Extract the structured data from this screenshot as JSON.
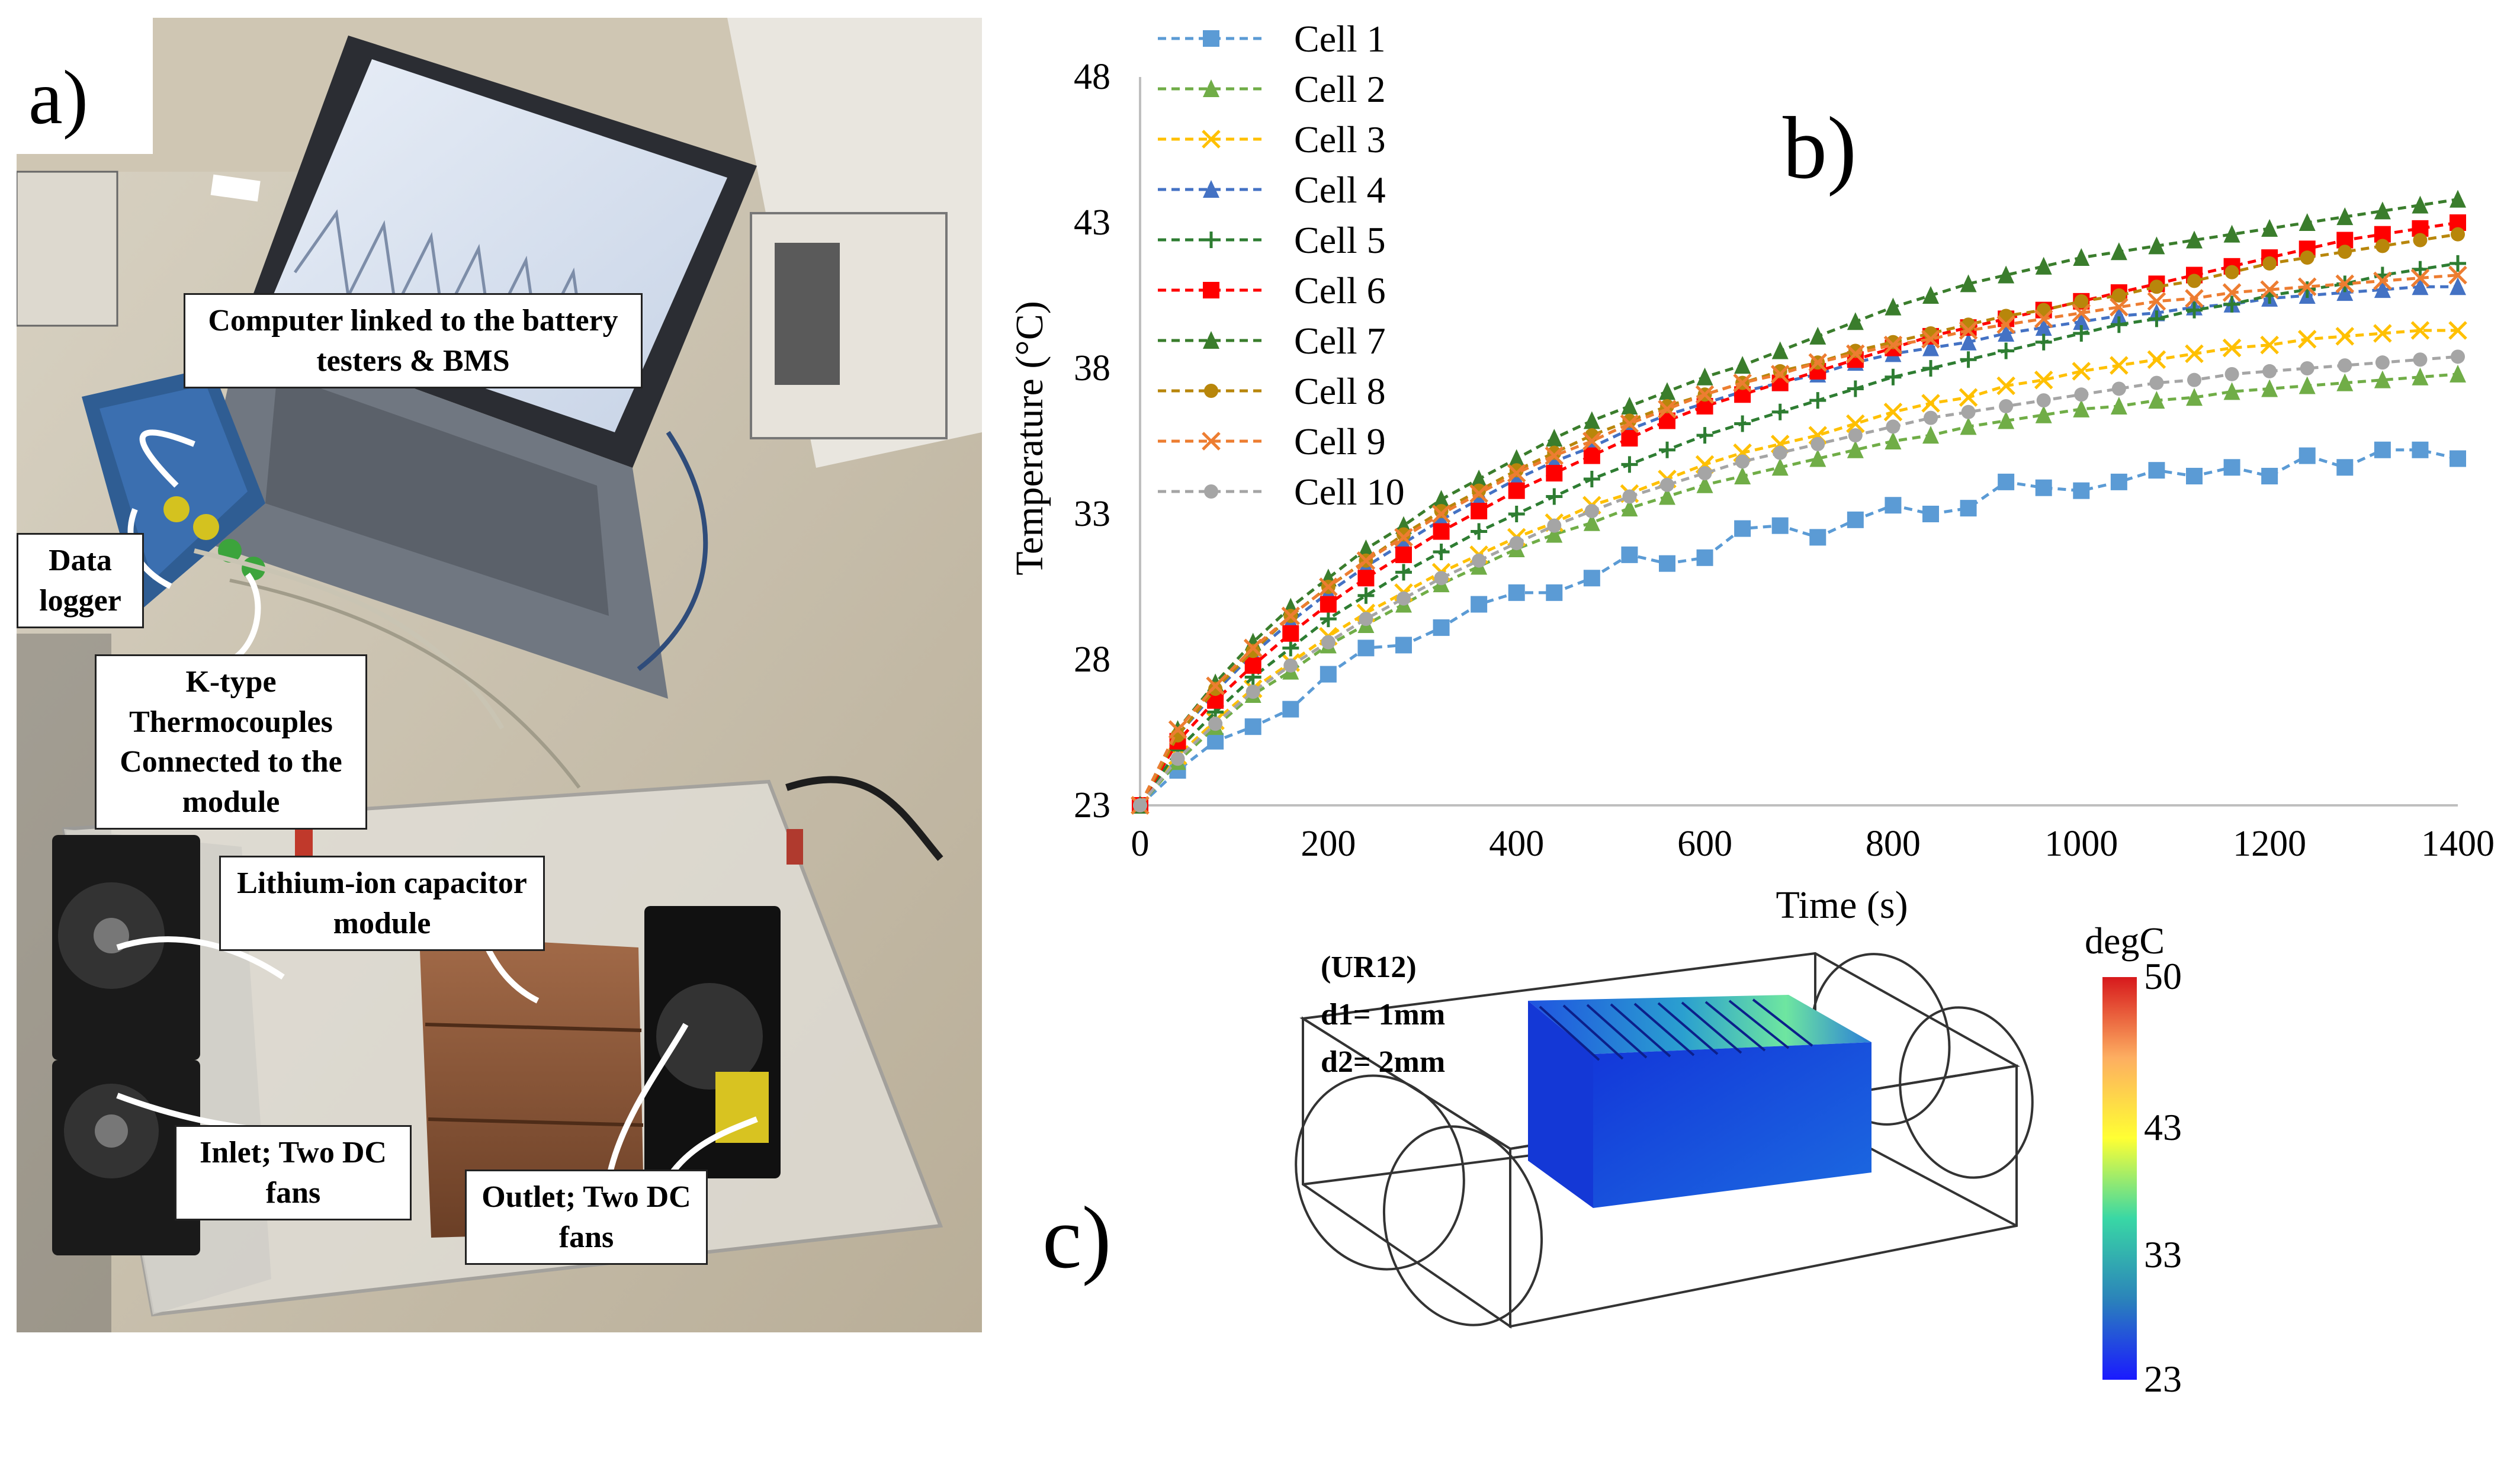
{
  "panel_a": {
    "label": "a)",
    "callouts": {
      "computer": "Computer linked to the battery testers & BMS",
      "data_logger": "Data logger",
      "thermocouples": "K-type Thermocouples Connected to the module",
      "module": "Lithium-ion capacitor module",
      "inlet": "Inlet; Two DC fans",
      "outlet": "Outlet; Two DC fans"
    }
  },
  "panel_b": {
    "label": "b)"
  },
  "panel_c": {
    "label": "c)",
    "case_lines": [
      "(UR12)",
      "d1= 1mm",
      "d2= 2mm"
    ],
    "colorbar": {
      "unit": "degC",
      "ticks": [
        "50",
        "43",
        "33",
        "23"
      ],
      "colors": [
        "#d7191c",
        "#fdae61",
        "#ffff33",
        "#39d7a5",
        "#2b83ba",
        "#1a1aff"
      ]
    }
  },
  "chart_data": {
    "type": "line",
    "xlabel": "Time (s)",
    "ylabel": "Temperature (°C)",
    "xlim": [
      0,
      1400
    ],
    "ylim": [
      23,
      48
    ],
    "xticks": [
      "0",
      "200",
      "400",
      "600",
      "800",
      "1000",
      "1200",
      "1400"
    ],
    "yticks": [
      "23",
      "28",
      "33",
      "38",
      "43",
      "48"
    ],
    "x": [
      0,
      40,
      80,
      120,
      160,
      200,
      240,
      280,
      320,
      360,
      400,
      440,
      480,
      520,
      560,
      600,
      640,
      680,
      720,
      760,
      800,
      840,
      880,
      920,
      960,
      1000,
      1040,
      1080,
      1120,
      1160,
      1200,
      1240,
      1280,
      1320,
      1360,
      1400
    ],
    "legend_position": "top-left",
    "series": [
      {
        "name": "Cell 1",
        "color": "#5b9bd5",
        "marker": "square",
        "values": [
          23,
          24.2,
          25.2,
          25.7,
          26.3,
          27.5,
          28.4,
          28.5,
          29.1,
          29.9,
          30.3,
          30.3,
          30.8,
          31.6,
          31.3,
          31.5,
          32.5,
          32.6,
          32.2,
          32.8,
          33.3,
          33.0,
          33.2,
          34.1,
          33.9,
          33.8,
          34.1,
          34.5,
          34.3,
          34.6,
          34.3,
          35.0,
          34.6,
          35.2,
          35.2,
          34.9
        ]
      },
      {
        "name": "Cell 2",
        "color": "#70ad47",
        "marker": "triangle",
        "values": [
          23,
          24.5,
          25.7,
          26.8,
          27.6,
          28.5,
          29.2,
          29.9,
          30.6,
          31.2,
          31.8,
          32.3,
          32.7,
          33.2,
          33.6,
          34.0,
          34.3,
          34.6,
          34.9,
          35.2,
          35.5,
          35.7,
          36.0,
          36.2,
          36.4,
          36.6,
          36.7,
          36.9,
          37.0,
          37.2,
          37.3,
          37.4,
          37.5,
          37.6,
          37.7,
          37.8
        ]
      },
      {
        "name": "Cell 3",
        "color": "#ffc000",
        "marker": "x",
        "values": [
          23,
          24.7,
          25.9,
          27.0,
          27.9,
          28.8,
          29.6,
          30.3,
          31.0,
          31.6,
          32.2,
          32.7,
          33.3,
          33.7,
          34.2,
          34.7,
          35.1,
          35.4,
          35.7,
          36.1,
          36.5,
          36.8,
          37.0,
          37.4,
          37.6,
          37.9,
          38.1,
          38.3,
          38.5,
          38.7,
          38.8,
          39.0,
          39.1,
          39.2,
          39.3,
          39.3
        ]
      },
      {
        "name": "Cell 4",
        "color": "#4472c4",
        "marker": "triangle",
        "values": [
          23,
          25.4,
          26.9,
          28.2,
          29.3,
          30.3,
          31.2,
          32.0,
          32.8,
          33.5,
          34.2,
          34.8,
          35.3,
          35.9,
          36.4,
          36.8,
          37.2,
          37.5,
          37.8,
          38.2,
          38.5,
          38.7,
          38.9,
          39.2,
          39.4,
          39.6,
          39.8,
          39.9,
          40.1,
          40.2,
          40.4,
          40.5,
          40.6,
          40.7,
          40.8,
          40.8
        ]
      },
      {
        "name": "Cell 5",
        "color": "#2e7d32",
        "marker": "plus",
        "values": [
          23,
          24.9,
          26.2,
          27.4,
          28.4,
          29.4,
          30.2,
          31.0,
          31.7,
          32.4,
          33.0,
          33.6,
          34.2,
          34.7,
          35.2,
          35.7,
          36.1,
          36.5,
          36.9,
          37.3,
          37.7,
          38.0,
          38.3,
          38.6,
          38.9,
          39.2,
          39.5,
          39.7,
          40.0,
          40.2,
          40.5,
          40.7,
          40.9,
          41.2,
          41.4,
          41.6
        ]
      },
      {
        "name": "Cell 6",
        "color": "#ff0000",
        "marker": "square",
        "values": [
          23,
          25.2,
          26.6,
          27.8,
          28.9,
          29.9,
          30.8,
          31.6,
          32.4,
          33.1,
          33.8,
          34.4,
          35.0,
          35.6,
          36.2,
          36.7,
          37.1,
          37.5,
          37.9,
          38.3,
          38.7,
          39.1,
          39.4,
          39.7,
          40.0,
          40.3,
          40.6,
          40.9,
          41.2,
          41.5,
          41.8,
          42.1,
          42.4,
          42.6,
          42.8,
          43.0
        ]
      },
      {
        "name": "Cell 7",
        "color": "#3a7d2c",
        "marker": "triangle",
        "values": [
          23,
          25.6,
          27.2,
          28.6,
          29.8,
          30.8,
          31.8,
          32.6,
          33.5,
          34.2,
          34.9,
          35.6,
          36.2,
          36.7,
          37.2,
          37.7,
          38.1,
          38.6,
          39.1,
          39.6,
          40.1,
          40.5,
          40.9,
          41.2,
          41.5,
          41.8,
          42.0,
          42.2,
          42.4,
          42.6,
          42.8,
          43.0,
          43.2,
          43.4,
          43.6,
          43.8
        ]
      },
      {
        "name": "Cell 8",
        "color": "#b8860b",
        "marker": "circle",
        "values": [
          23,
          25.4,
          27.0,
          28.3,
          29.5,
          30.5,
          31.4,
          32.3,
          33.1,
          33.8,
          34.5,
          35.1,
          35.7,
          36.2,
          36.7,
          37.1,
          37.5,
          37.9,
          38.2,
          38.6,
          38.9,
          39.2,
          39.5,
          39.8,
          40.0,
          40.3,
          40.5,
          40.8,
          41.0,
          41.3,
          41.6,
          41.8,
          42.0,
          42.2,
          42.4,
          42.6
        ]
      },
      {
        "name": "Cell 9",
        "color": "#ed7d31",
        "marker": "x",
        "values": [
          23,
          25.6,
          27.1,
          28.4,
          29.5,
          30.5,
          31.4,
          32.2,
          33.0,
          33.7,
          34.4,
          35.0,
          35.5,
          36.1,
          36.6,
          37.1,
          37.5,
          37.8,
          38.2,
          38.5,
          38.8,
          39.0,
          39.3,
          39.5,
          39.7,
          39.9,
          40.1,
          40.3,
          40.4,
          40.6,
          40.7,
          40.8,
          40.9,
          41.0,
          41.1,
          41.2
        ]
      },
      {
        "name": "Cell 10",
        "color": "#a5a5a5",
        "marker": "circle",
        "values": [
          23,
          24.6,
          25.8,
          26.9,
          27.8,
          28.6,
          29.4,
          30.1,
          30.8,
          31.4,
          32.0,
          32.6,
          33.1,
          33.6,
          34.0,
          34.4,
          34.8,
          35.1,
          35.4,
          35.7,
          36.0,
          36.3,
          36.5,
          36.7,
          36.9,
          37.1,
          37.3,
          37.5,
          37.6,
          37.8,
          37.9,
          38.0,
          38.1,
          38.2,
          38.3,
          38.4
        ]
      }
    ]
  }
}
